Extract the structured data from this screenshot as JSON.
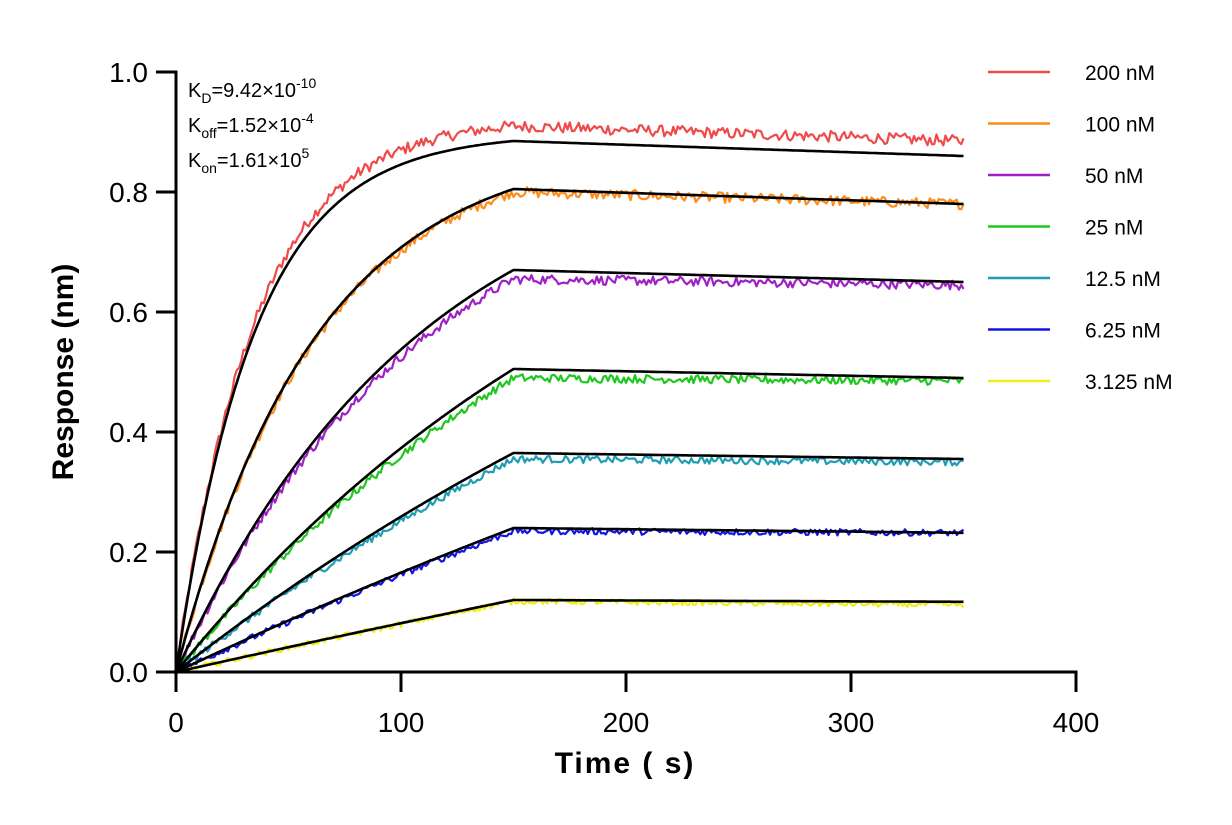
{
  "chart_data": {
    "type": "line",
    "title": "",
    "xlabel": "Time ( s)",
    "ylabel": "Response (nm)",
    "xlim": [
      0,
      400
    ],
    "ylim": [
      0,
      1.0
    ],
    "x_ticks": [
      "0",
      "100",
      "200",
      "300",
      "400"
    ],
    "y_ticks": [
      "0.0",
      "0.2",
      "0.4",
      "0.6",
      "0.8",
      "1.0"
    ],
    "legend_position": "right",
    "association_end_s": 150,
    "dissociation_end_s": 350,
    "kinetics": {
      "KD": {
        "base": "K",
        "sub": "D",
        "value": "=9.42×10",
        "exp": "-10"
      },
      "Koff": {
        "base": "K",
        "sub": "off",
        "value": "=1.52×10",
        "exp": "-4"
      },
      "Kon": {
        "base": "K",
        "sub": "on",
        "value": "=1.61×10",
        "exp": "5"
      }
    },
    "fit_color": "#000000",
    "series": [
      {
        "name": "200 nM",
        "color": "#ef4b4b",
        "fit_peak": 0.885,
        "fit_end": 0.86,
        "data_peak": 0.91,
        "data_end": 0.885,
        "tau": 35
      },
      {
        "name": "100 nM",
        "color": "#ff8c1a",
        "fit_peak": 0.805,
        "fit_end": 0.78,
        "data_peak": 0.8,
        "data_end": 0.78,
        "tau": 62
      },
      {
        "name": "50 nM",
        "color": "#a020c8",
        "fit_peak": 0.67,
        "fit_end": 0.65,
        "data_peak": 0.655,
        "data_end": 0.645,
        "tau": 110
      },
      {
        "name": "25 nM",
        "color": "#1ec81e",
        "fit_peak": 0.505,
        "fit_end": 0.49,
        "data_peak": 0.49,
        "data_end": 0.485,
        "tau": 220
      },
      {
        "name": "12.5 nM",
        "color": "#1e9eb4",
        "fit_peak": 0.365,
        "fit_end": 0.355,
        "data_peak": 0.355,
        "data_end": 0.35,
        "tau": 380
      },
      {
        "name": "6.25 nM",
        "color": "#1414e6",
        "fit_peak": 0.24,
        "fit_end": 0.232,
        "data_peak": 0.235,
        "data_end": 0.232,
        "tau": 700
      },
      {
        "name": "3.125 nM",
        "color": "#f0f014",
        "fit_peak": 0.12,
        "fit_end": 0.117,
        "data_peak": 0.118,
        "data_end": 0.112,
        "tau": 1500
      }
    ]
  }
}
